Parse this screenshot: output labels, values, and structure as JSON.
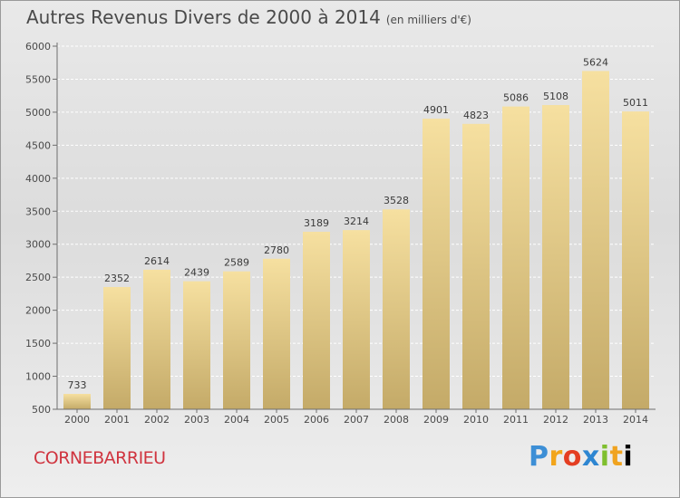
{
  "header": {
    "title": "Autres Revenus Divers de 2000 à 2014",
    "subtitle": "(en milliers d'€)"
  },
  "footer": {
    "commune": "CORNEBARRIEU",
    "logo_letters": [
      "P",
      "r",
      "o",
      "x",
      "i",
      "t",
      "i"
    ]
  },
  "chart_data": {
    "type": "bar",
    "title": "Autres Revenus Divers de 2000 à 2014",
    "subtitle": "(en milliers d'€)",
    "categories": [
      "2000",
      "2001",
      "2002",
      "2003",
      "2004",
      "2005",
      "2006",
      "2007",
      "2008",
      "2009",
      "2010",
      "2011",
      "2012",
      "2013",
      "2014"
    ],
    "values": [
      733,
      2352,
      2614,
      2439,
      2589,
      2780,
      3189,
      3214,
      3528,
      4901,
      4823,
      5086,
      5108,
      5624,
      5011
    ],
    "data_labels": [
      "733",
      "2352",
      "2614",
      "2439",
      "2589",
      "2780",
      "3189",
      "3214",
      "3528",
      "4901",
      "4823",
      "5086",
      "5108",
      "5624",
      "5011"
    ],
    "yticks": [
      500,
      1000,
      1500,
      2000,
      2500,
      3000,
      3500,
      4000,
      4500,
      5000,
      5500,
      6000
    ],
    "ylim": [
      500,
      6000
    ],
    "xlabel": "",
    "ylabel": "",
    "grid": true,
    "legend": "none",
    "bar_color_top": "#f6e0a0",
    "bar_color_bottom": "#c4aa68"
  }
}
